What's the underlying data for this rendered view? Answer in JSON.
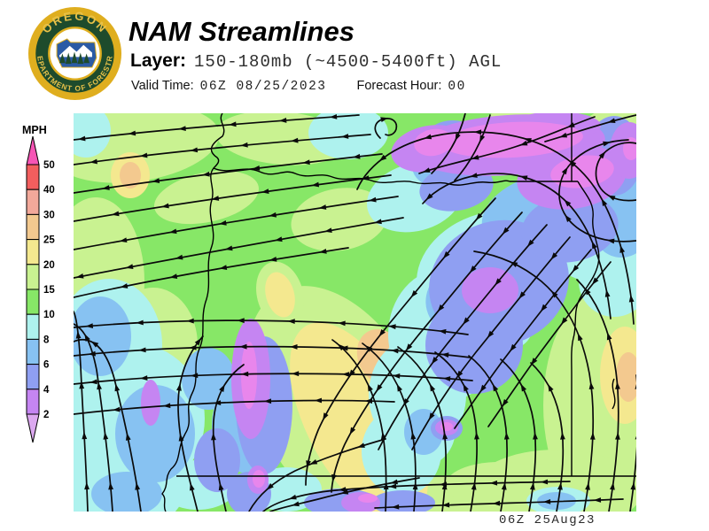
{
  "header": {
    "title": "NAM Streamlines",
    "layer_label": "Layer:",
    "layer_value": "150-180mb (~4500-5400ft) AGL",
    "valid_time_label": "Valid Time:",
    "valid_time_value": "06Z 08/25/2023",
    "forecast_hour_label": "Forecast Hour:",
    "forecast_hour_value": "00"
  },
  "logo": {
    "top_text": "OREGON",
    "bottom_text": "DEPARTMENT OF FORESTRY",
    "ring_color": "#DFAE1F",
    "field_color": "#1E4B2C",
    "emblem_color": "#2B5BA5"
  },
  "legend": {
    "unit": "MPH",
    "ticks": [
      "50",
      "40",
      "30",
      "25",
      "20",
      "15",
      "10",
      "8",
      "6",
      "4",
      "2"
    ],
    "color_order": [
      "gt50",
      "40_50",
      "30_40",
      "25_30",
      "20_25",
      "15_20",
      "10_15",
      "8_10",
      "6_8",
      "4_6",
      "2_4",
      "lt2"
    ],
    "colors": {
      "gt50": "#F655B5",
      "40_50": "#F25E5E",
      "30_40": "#F2A89A",
      "25_30": "#F3C98F",
      "20_25": "#F4E88F",
      "15_20": "#C9F291",
      "10_15": "#87E767",
      "8_10": "#AEF2EE",
      "6_8": "#87C2F2",
      "4_6": "#8F9FF2",
      "2_4": "#C585F2",
      "lt2": "#DCA9F0",
      "map_magenta": "#E886EC"
    }
  },
  "map": {
    "stamp": "06Z 25Aug23",
    "stream_color": "#0a0a0a",
    "border_color": "#000000"
  }
}
